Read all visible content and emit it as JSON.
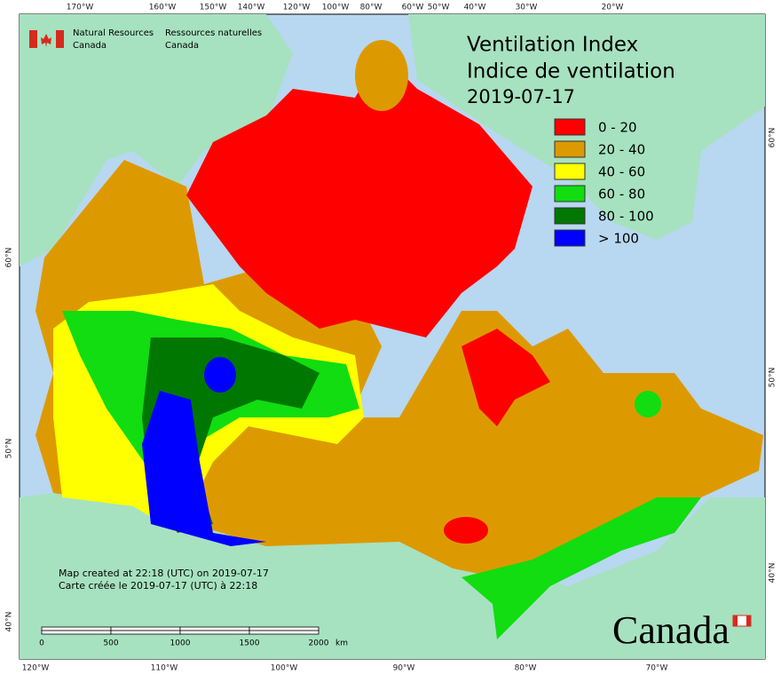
{
  "header": {
    "agency_en": [
      "Natural Resources",
      "Canada"
    ],
    "agency_fr": [
      "Ressources naturelles",
      "Canada"
    ]
  },
  "title": {
    "line1": "Ventilation Index",
    "line2": "Indice de ventilation",
    "date": "2019-07-17"
  },
  "legend": [
    {
      "label": "0 - 20",
      "color": "#ff0000"
    },
    {
      "label": "20 - 40",
      "color": "#dd9a00"
    },
    {
      "label": "40 - 60",
      "color": "#ffff00"
    },
    {
      "label": "60 - 80",
      "color": "#11dd11"
    },
    {
      "label": "80 - 100",
      "color": "#007700"
    },
    {
      "label": "> 100",
      "color": "#0000ff"
    }
  ],
  "graticule": {
    "top": [
      "170°W",
      "160°W",
      "150°W",
      "140°W",
      "120°W",
      "100°W",
      "80°W",
      "60°W",
      "50°W",
      "40°W",
      "30°W",
      "20°W"
    ],
    "bottom": [
      "120°W",
      "110°W",
      "100°W",
      "90°W",
      "80°W",
      "70°W"
    ],
    "left": [
      "60°N",
      "50°N",
      "40°N"
    ],
    "right": [
      "60°N",
      "50°N",
      "40°N"
    ]
  },
  "footer": {
    "created_en": "Map created at 22:18 (UTC) on 2019-07-17",
    "created_fr": "Carte créée le 2019-07-17 (UTC) à 22:18",
    "wordmark": "Canada"
  },
  "scale_bar": {
    "labels": [
      "0",
      "500",
      "1000",
      "1500",
      "2000"
    ],
    "unit": "km"
  }
}
